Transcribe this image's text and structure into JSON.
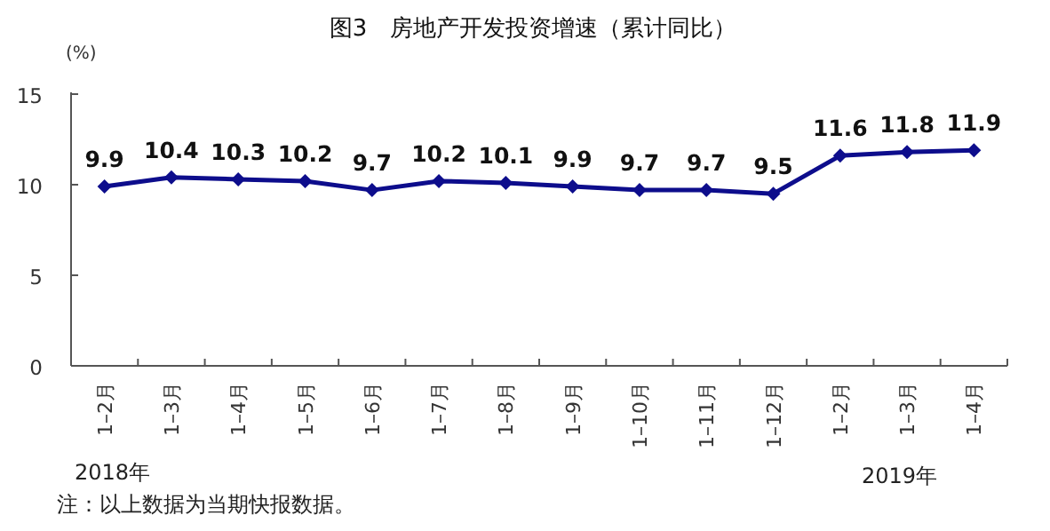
{
  "chart_data": {
    "type": "line",
    "title": "图3　房地产开发投资增速（累计同比）",
    "ylabel": "(%)",
    "categories": [
      "1–2月",
      "1–3月",
      "1–4月",
      "1–5月",
      "1–6月",
      "1–7月",
      "1–8月",
      "1–9月",
      "1–10月",
      "1–11月",
      "1–12月",
      "1–2月",
      "1–3月",
      "1–4月"
    ],
    "series": [
      {
        "color": "#0d0d8c",
        "values": [
          9.9,
          10.4,
          10.3,
          10.2,
          9.7,
          10.2,
          10.1,
          9.9,
          9.7,
          9.7,
          9.5,
          11.6,
          11.8,
          11.9
        ]
      }
    ],
    "ylim": [
      0,
      15
    ],
    "yticks": [
      0,
      5,
      10,
      15
    ],
    "marker": "diamond",
    "line_style": "solid",
    "data_labels": true,
    "grid": false,
    "annotations": [
      "2018年",
      "2019年",
      "注：以上数据为当期快报数据。"
    ]
  }
}
